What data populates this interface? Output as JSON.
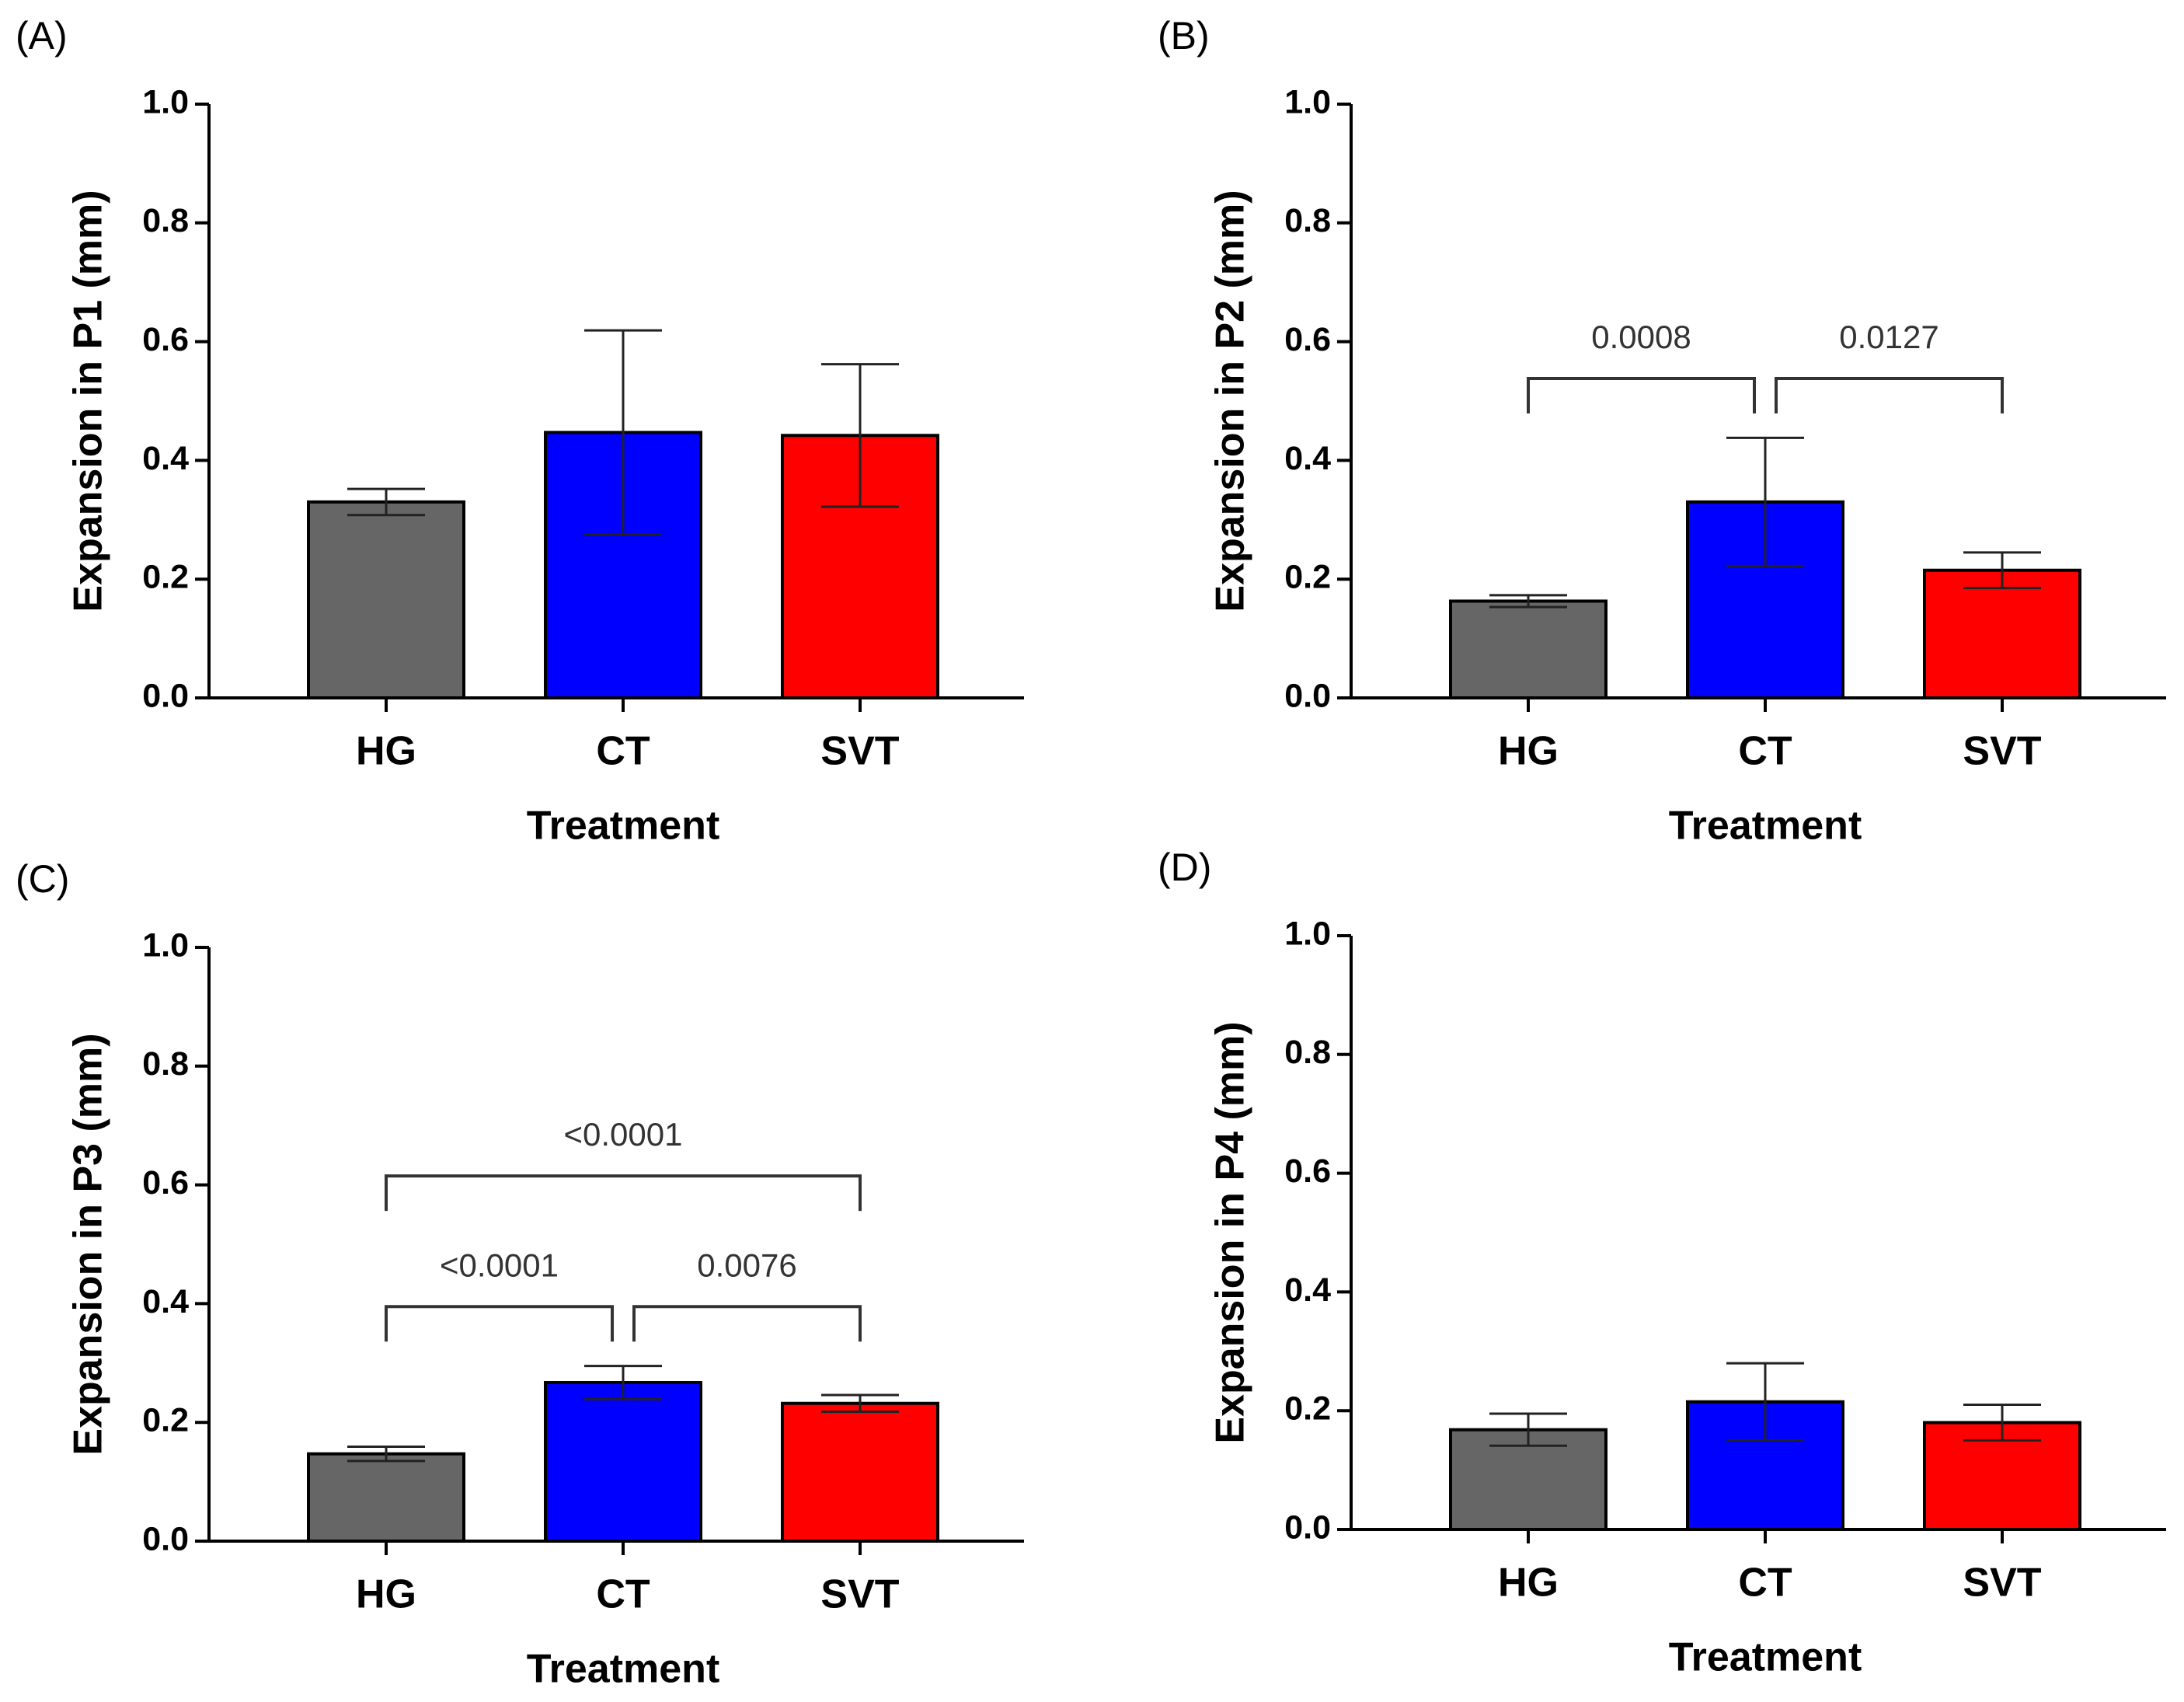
{
  "chart_data": [
    {
      "type": "bar",
      "panel": "(A)",
      "xlabel": "Treatment",
      "ylabel": "Expansion in P1 (mm)",
      "categories": [
        "HG",
        "CT",
        "SVT"
      ],
      "values": [
        0.33,
        0.447,
        0.442
      ],
      "errors": [
        0.022,
        0.172,
        0.12
      ],
      "colors": [
        "#666666",
        "#0000ff",
        "#ff0000"
      ],
      "ylim": [
        0,
        1
      ],
      "yticks": [
        {
          "value": 0,
          "label": "0.0"
        },
        0.2,
        0.4,
        0.6,
        0.8,
        {
          "value": 1,
          "label": "1.0"
        }
      ],
      "comparisons": []
    },
    {
      "type": "bar",
      "panel": "(B)",
      "xlabel": "Treatment",
      "ylabel": "Expansion in P2 (mm)",
      "categories": [
        "HG",
        "CT",
        "SVT"
      ],
      "values": [
        0.163,
        0.33,
        0.215
      ],
      "errors": [
        0.01,
        0.108,
        0.03
      ],
      "colors": [
        "#666666",
        "#0000ff",
        "#ff0000"
      ],
      "ylim": [
        0,
        1
      ],
      "yticks": [
        {
          "value": 0,
          "label": "0.0"
        },
        0.2,
        0.4,
        0.6,
        0.8,
        {
          "value": 1,
          "label": "1.0"
        }
      ],
      "comparisons": [
        {
          "from": 0,
          "to": 1,
          "label": "0.0008"
        },
        {
          "from": 1,
          "to": 2,
          "label": "0.0127"
        }
      ]
    },
    {
      "type": "bar",
      "panel": "(C)",
      "xlabel": "Treatment",
      "ylabel": "Expansion in P3 (mm)",
      "categories": [
        "HG",
        "CT",
        "SVT"
      ],
      "values": [
        0.147,
        0.267,
        0.232
      ],
      "errors": [
        0.012,
        0.028,
        0.014
      ],
      "colors": [
        "#666666",
        "#0000ff",
        "#ff0000"
      ],
      "ylim": [
        0,
        1
      ],
      "yticks": [
        {
          "value": 0,
          "label": "0.0"
        },
        0.2,
        0.4,
        0.6,
        0.8,
        {
          "value": 1,
          "label": "1.0"
        }
      ],
      "comparisons": [
        {
          "from": 0,
          "to": 1,
          "label": "<0.0001"
        },
        {
          "from": 1,
          "to": 2,
          "label": "0.0076"
        },
        {
          "from": 0,
          "to": 2,
          "label": "<0.0001"
        }
      ]
    },
    {
      "type": "bar",
      "panel": "(D)",
      "xlabel": "Treatment",
      "ylabel": "Expansion in P4 (mm)",
      "categories": [
        "HG",
        "CT",
        "SVT"
      ],
      "values": [
        0.168,
        0.215,
        0.18
      ],
      "errors": [
        0.027,
        0.065,
        0.03
      ],
      "colors": [
        "#666666",
        "#0000ff",
        "#ff0000"
      ],
      "ylim": [
        0,
        1
      ],
      "yticks": [
        {
          "value": 0,
          "label": "0.0"
        },
        0.2,
        0.4,
        0.6,
        0.8,
        {
          "value": 1,
          "label": "1.0"
        }
      ],
      "comparisons": []
    }
  ]
}
